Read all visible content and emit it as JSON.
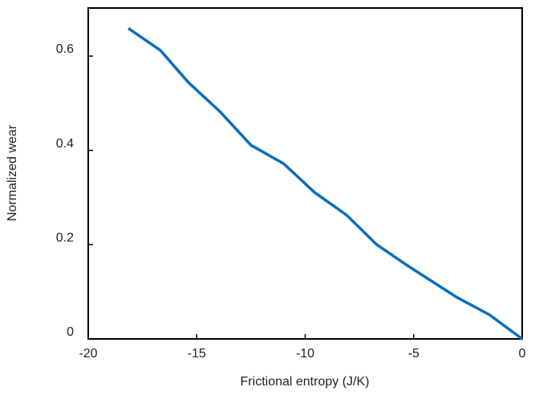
{
  "chart_data": {
    "type": "line",
    "x_label": "Frictional entropy (J/K)",
    "y_label": "Normalized wear",
    "x": [
      -18.15,
      -16.67,
      -15.38,
      -13.9,
      -12.5,
      -11.0,
      -9.57,
      -8.1,
      -6.7,
      -5.2,
      -3.0,
      -1.5,
      0
    ],
    "series": [
      {
        "color": "#0a6ebd",
        "values": [
          0.659,
          0.612,
          0.544,
          0.481,
          0.411,
          0.372,
          0.311,
          0.263,
          0.2,
          0.153,
          0.088,
          0.051,
          0
        ]
      }
    ],
    "xlim": [
      -20,
      0
    ],
    "xticks": [
      -20,
      -15,
      -10,
      -5,
      0
    ],
    "ylim": [
      0,
      0.702
    ],
    "yticks": [
      0,
      0.2,
      0.4,
      0.6
    ],
    "grid": false
  }
}
